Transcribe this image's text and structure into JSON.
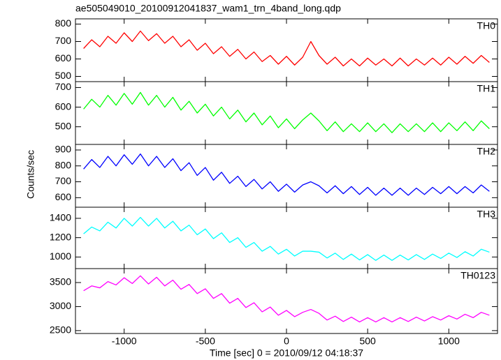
{
  "title": "ae505049010_20100912041837_wam1_trn_4band_long.qdp",
  "y_label": "Counts/sec",
  "x_label": "Time [sec] 0 = 2010/09/12 04:18:37",
  "chart_data": [
    {
      "type": "line",
      "xlim": [
        -1300,
        1300
      ],
      "xticks": [
        -1000,
        -500,
        0,
        500,
        1000
      ],
      "ylim": [
        470,
        830
      ],
      "yticks": [
        500,
        600,
        700,
        800
      ],
      "x": [
        -1250,
        -1200,
        -1150,
        -1100,
        -1050,
        -1000,
        -950,
        -900,
        -850,
        -800,
        -750,
        -700,
        -650,
        -600,
        -550,
        -500,
        -450,
        -400,
        -350,
        -300,
        -250,
        -200,
        -150,
        -100,
        -50,
        0,
        50,
        100,
        150,
        200,
        250,
        300,
        350,
        400,
        450,
        500,
        550,
        600,
        650,
        700,
        750,
        800,
        850,
        900,
        950,
        1000,
        1050,
        1100,
        1150,
        1200,
        1250
      ],
      "series": [
        {
          "name": "TH0",
          "color": "#ff0000",
          "values": [
            660,
            710,
            670,
            730,
            690,
            750,
            700,
            760,
            705,
            745,
            690,
            730,
            670,
            710,
            650,
            690,
            630,
            670,
            615,
            655,
            600,
            640,
            585,
            620,
            570,
            615,
            565,
            610,
            700,
            620,
            570,
            610,
            560,
            600,
            560,
            605,
            565,
            600,
            560,
            605,
            560,
            600,
            565,
            605,
            565,
            610,
            570,
            615,
            575,
            620,
            580
          ]
        }
      ]
    },
    {
      "type": "line",
      "xlim": [
        -1300,
        1300
      ],
      "xticks": [
        -1000,
        -500,
        0,
        500,
        1000
      ],
      "ylim": [
        410,
        730
      ],
      "yticks": [
        500,
        600,
        700
      ],
      "x": [
        -1250,
        -1200,
        -1150,
        -1100,
        -1050,
        -1000,
        -950,
        -900,
        -850,
        -800,
        -750,
        -700,
        -650,
        -600,
        -550,
        -500,
        -450,
        -400,
        -350,
        -300,
        -250,
        -200,
        -150,
        -100,
        -50,
        0,
        50,
        100,
        150,
        200,
        250,
        300,
        350,
        400,
        450,
        500,
        550,
        600,
        650,
        700,
        750,
        800,
        850,
        900,
        950,
        1000,
        1050,
        1100,
        1150,
        1200,
        1250
      ],
      "series": [
        {
          "name": "TH1",
          "color": "#00ff00",
          "values": [
            590,
            640,
            600,
            660,
            610,
            670,
            615,
            675,
            610,
            660,
            600,
            650,
            585,
            630,
            570,
            615,
            555,
            600,
            540,
            585,
            525,
            570,
            510,
            555,
            495,
            540,
            490,
            535,
            570,
            530,
            480,
            525,
            475,
            515,
            475,
            520,
            475,
            515,
            470,
            515,
            475,
            515,
            475,
            520,
            475,
            520,
            480,
            525,
            480,
            530,
            490
          ]
        }
      ]
    },
    {
      "type": "line",
      "xlim": [
        -1300,
        1300
      ],
      "xticks": [
        -1000,
        -500,
        0,
        500,
        1000
      ],
      "ylim": [
        540,
        935
      ],
      "yticks": [
        600,
        700,
        800,
        900
      ],
      "x": [
        -1250,
        -1200,
        -1150,
        -1100,
        -1050,
        -1000,
        -950,
        -900,
        -850,
        -800,
        -750,
        -700,
        -650,
        -600,
        -550,
        -500,
        -450,
        -400,
        -350,
        -300,
        -250,
        -200,
        -150,
        -100,
        -50,
        0,
        50,
        100,
        150,
        200,
        250,
        300,
        350,
        400,
        450,
        500,
        550,
        600,
        650,
        700,
        750,
        800,
        850,
        900,
        950,
        1000,
        1050,
        1100,
        1150,
        1200,
        1250
      ],
      "series": [
        {
          "name": "TH2",
          "color": "#0000ff",
          "values": [
            780,
            840,
            790,
            860,
            800,
            870,
            810,
            875,
            800,
            860,
            790,
            845,
            770,
            820,
            740,
            790,
            710,
            760,
            690,
            735,
            670,
            715,
            655,
            700,
            640,
            685,
            635,
            680,
            700,
            675,
            630,
            675,
            625,
            670,
            620,
            665,
            615,
            660,
            615,
            660,
            615,
            660,
            620,
            665,
            625,
            670,
            625,
            670,
            630,
            680,
            640
          ]
        }
      ]
    },
    {
      "type": "line",
      "xlim": [
        -1300,
        1300
      ],
      "xticks": [
        -1000,
        -500,
        0,
        500,
        1000
      ],
      "ylim": [
        880,
        1515
      ],
      "yticks": [
        1000,
        1200,
        1400
      ],
      "x": [
        -1250,
        -1200,
        -1150,
        -1100,
        -1050,
        -1000,
        -950,
        -900,
        -850,
        -800,
        -750,
        -700,
        -650,
        -600,
        -550,
        -500,
        -450,
        -400,
        -350,
        -300,
        -250,
        -200,
        -150,
        -100,
        -50,
        0,
        50,
        100,
        150,
        200,
        250,
        300,
        350,
        400,
        450,
        500,
        550,
        600,
        650,
        700,
        750,
        800,
        850,
        900,
        950,
        1000,
        1050,
        1100,
        1150,
        1200,
        1250
      ],
      "series": [
        {
          "name": "TH3",
          "color": "#00ffff",
          "values": [
            1240,
            1310,
            1270,
            1360,
            1300,
            1400,
            1320,
            1410,
            1320,
            1400,
            1300,
            1370,
            1270,
            1330,
            1230,
            1290,
            1190,
            1250,
            1150,
            1200,
            1100,
            1150,
            1060,
            1110,
            1030,
            1080,
            1010,
            1060,
            1060,
            1050,
            990,
            1040,
            975,
            1030,
            970,
            1025,
            965,
            1020,
            965,
            1020,
            970,
            1025,
            975,
            1030,
            985,
            1040,
            995,
            1055,
            1010,
            1080,
            1050
          ]
        }
      ]
    },
    {
      "type": "line",
      "xlim": [
        -1300,
        1300
      ],
      "xticks": [
        -1000,
        -500,
        0,
        500,
        1000
      ],
      "ylim": [
        2440,
        3790
      ],
      "yticks": [
        2500,
        3000,
        3500
      ],
      "x": [
        -1250,
        -1200,
        -1150,
        -1100,
        -1050,
        -1000,
        -950,
        -900,
        -850,
        -800,
        -750,
        -700,
        -650,
        -600,
        -550,
        -500,
        -450,
        -400,
        -350,
        -300,
        -250,
        -200,
        -150,
        -100,
        -50,
        0,
        50,
        100,
        150,
        200,
        250,
        300,
        350,
        400,
        450,
        500,
        550,
        600,
        650,
        700,
        750,
        800,
        850,
        900,
        950,
        1000,
        1050,
        1100,
        1150,
        1200,
        1250
      ],
      "series": [
        {
          "name": "TH0123",
          "color": "#ff00ff",
          "values": [
            3330,
            3430,
            3390,
            3520,
            3450,
            3600,
            3480,
            3640,
            3470,
            3610,
            3430,
            3550,
            3360,
            3460,
            3270,
            3370,
            3170,
            3270,
            3070,
            3170,
            2980,
            3080,
            2890,
            2990,
            2820,
            2920,
            2790,
            2880,
            2940,
            2860,
            2720,
            2800,
            2690,
            2780,
            2680,
            2770,
            2680,
            2770,
            2680,
            2770,
            2690,
            2780,
            2700,
            2790,
            2720,
            2810,
            2740,
            2840,
            2770,
            2880,
            2820
          ]
        }
      ]
    }
  ]
}
